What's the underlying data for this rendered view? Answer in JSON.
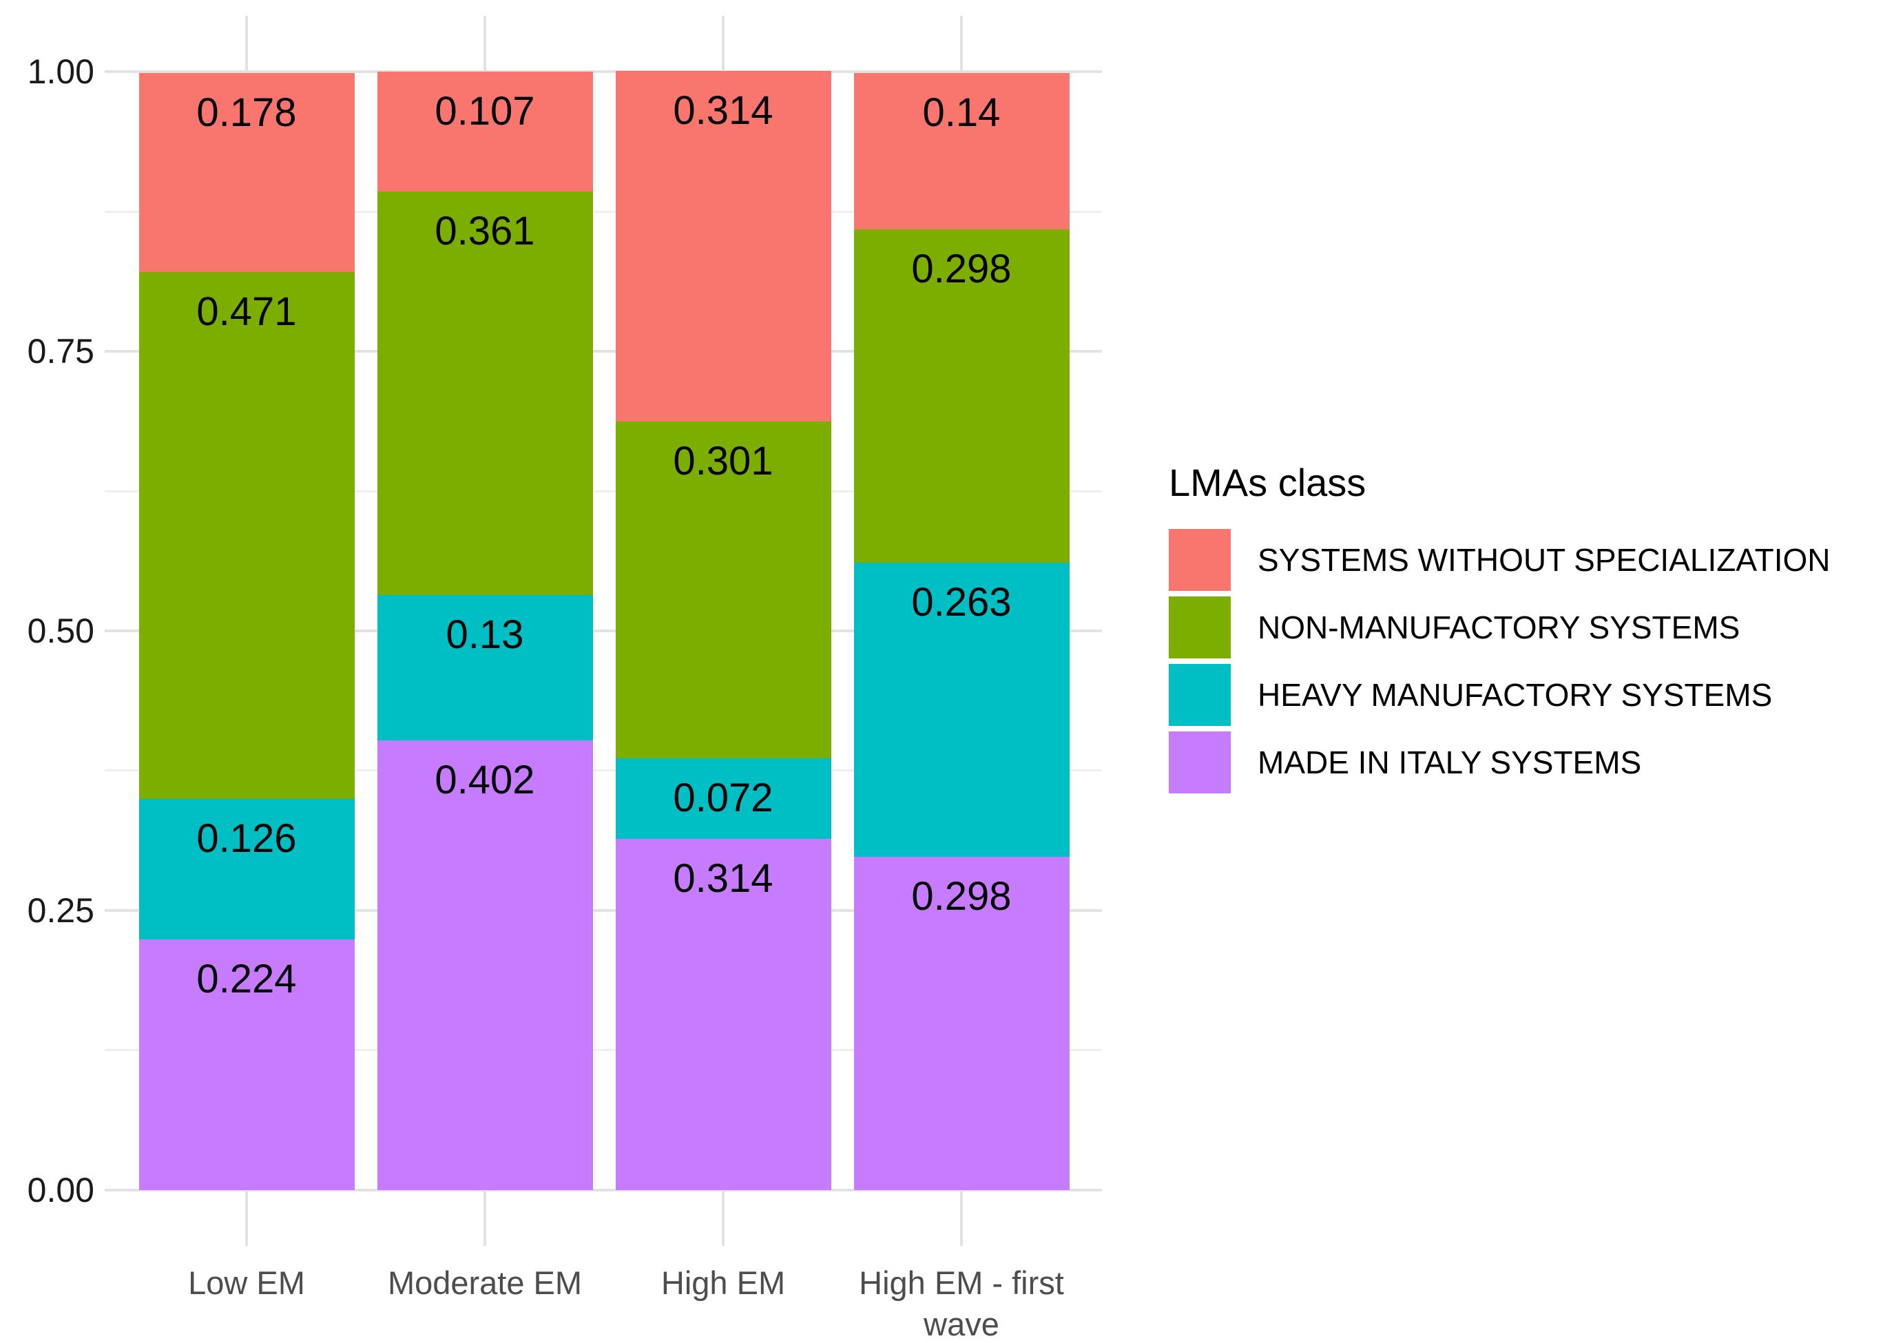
{
  "figure": {
    "background": "#FFFFFF"
  },
  "chart_data": {
    "type": "bar",
    "stacked": true,
    "orientation": "vertical",
    "title": "",
    "xlabel": "",
    "ylabel": "",
    "categories": [
      "Low EM",
      "Moderate EM",
      "High EM",
      "High EM - first wave"
    ],
    "series": [
      {
        "name": "SYSTEMS WITHOUT SPECIALIZATION",
        "color": "#F8766D",
        "values": [
          0.178,
          0.107,
          0.314,
          0.14
        ]
      },
      {
        "name": "NON-MANUFACTORY SYSTEMS",
        "color": "#7CAE00",
        "values": [
          0.471,
          0.361,
          0.301,
          0.298
        ]
      },
      {
        "name": "HEAVY MANUFACTORY SYSTEMS",
        "color": "#00BFC4",
        "values": [
          0.126,
          0.13,
          0.072,
          0.263
        ]
      },
      {
        "name": "MADE IN ITALY SYSTEMS",
        "color": "#C77CFF",
        "values": [
          0.224,
          0.402,
          0.314,
          0.298
        ]
      }
    ],
    "stack_note": "first series drawn at top of stack, last series at bottom",
    "y_axis": {
      "ticks": [
        {
          "label": "0.00",
          "value": 0
        },
        {
          "label": "0.25",
          "value": 0.25
        },
        {
          "label": "0.50",
          "value": 0.5
        },
        {
          "label": "0.75",
          "value": 0.75
        },
        {
          "label": "1.00",
          "value": 1
        }
      ],
      "minor_ticks": [
        0.125,
        0.375,
        0.625,
        0.875
      ],
      "range": [
        -0.05,
        1.05
      ]
    },
    "legend": {
      "title": "LMAs class",
      "position": "right"
    },
    "grid": {
      "major_color": "#E2E2E2",
      "minor_color": "#EFEFEF",
      "vertical_at_category_centers": true
    },
    "text_colors": {
      "y_tick_labels": "#1A1A1A",
      "x_tick_labels": "#4D4D4D",
      "bar_value_labels": "#000000",
      "legend_text": "#000000"
    }
  }
}
